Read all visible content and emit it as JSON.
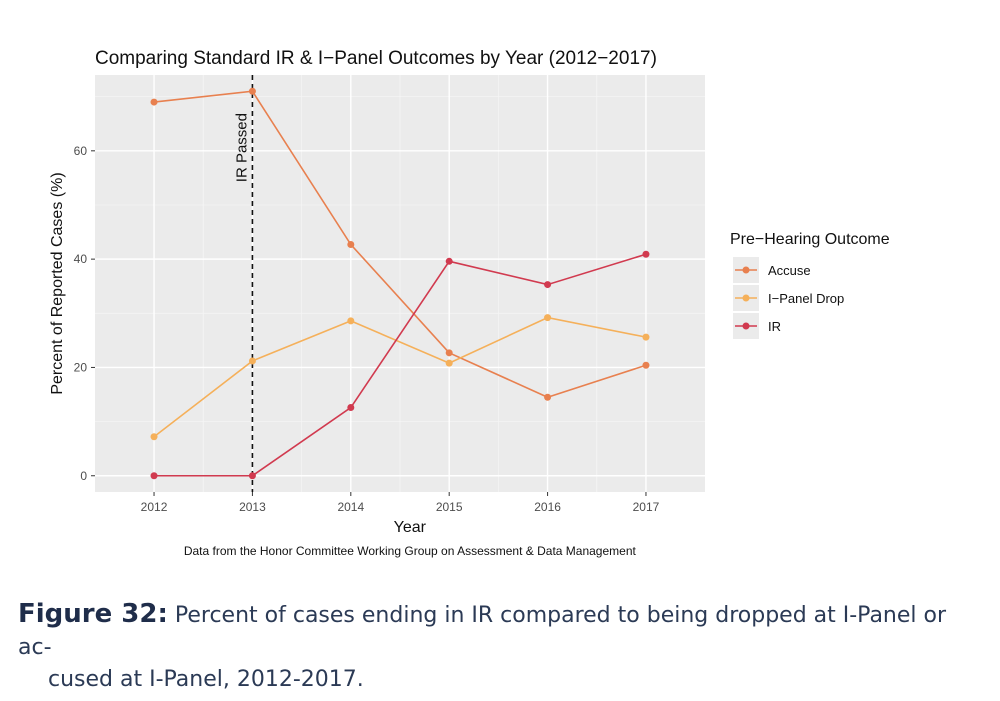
{
  "chart_data": {
    "type": "line",
    "title": "Comparing Standard IR & I−Panel Outcomes by Year (2012−2017)",
    "xlabel": "Year",
    "ylabel": "Percent of Reported Cases (%)",
    "x": [
      2012,
      2013,
      2014,
      2015,
      2016,
      2017
    ],
    "xticks": [
      "2012",
      "2013",
      "2014",
      "2015",
      "2016",
      "2017"
    ],
    "yticks": [
      0,
      20,
      40,
      60
    ],
    "ylim": [
      -3,
      74
    ],
    "xlim": [
      2011.4,
      2017.6
    ],
    "grid": true,
    "legend_title": "Pre−Hearing Outcome",
    "legend_placement": "right",
    "series": [
      {
        "name": "Accuse",
        "color": "#e8804f",
        "values": [
          69,
          71,
          42.7,
          22.7,
          14.5,
          20.4
        ]
      },
      {
        "name": "I−Panel Drop",
        "color": "#f5b05a",
        "values": [
          7.2,
          21.2,
          28.6,
          20.8,
          29.2,
          25.6
        ]
      },
      {
        "name": "IR",
        "color": "#d13a4f",
        "values": [
          0,
          0,
          12.6,
          39.6,
          35.3,
          40.9
        ]
      }
    ],
    "annotation": {
      "label": "IR Passed",
      "x": 2013
    },
    "source": "Data from the Honor Committee Working Group on Assessment & Data Management"
  },
  "caption": {
    "label": "Figure 32:",
    "line1": " Percent of cases ending in IR compared to being dropped at I-Panel or ac-",
    "line2": "cused at I-Panel, 2012-2017."
  }
}
